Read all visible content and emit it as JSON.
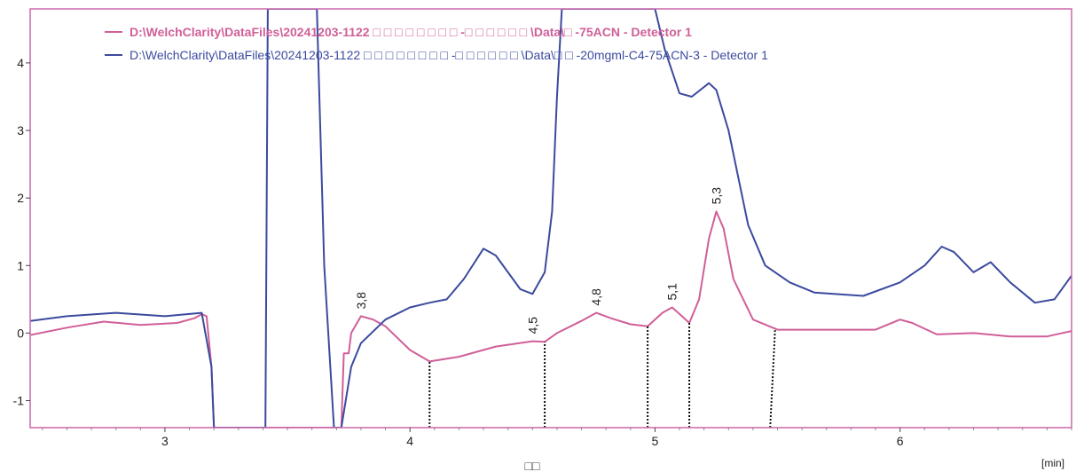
{
  "chart_data": {
    "type": "line",
    "xlim": [
      2.45,
      6.7
    ],
    "ylim": [
      -1.4,
      4.8
    ],
    "x_ticks": [
      3,
      4,
      5,
      6
    ],
    "y_ticks": [
      -1,
      0,
      1,
      2,
      3,
      4
    ],
    "x_unit": "[min]",
    "xlabel": "□□",
    "legend_position": "top-left",
    "frame_color": "#cc66aa",
    "series": [
      {
        "name": "D:\\WelchClarity\\DataFiles\\20241203-1122 □ □ □ □ □ □ □ □ -□ □ □ □ □ □ \\Data\\□ -75ACN - Detector 1",
        "color": "#d05f98",
        "points": [
          [
            2.45,
            -0.03
          ],
          [
            2.6,
            0.08
          ],
          [
            2.75,
            0.17
          ],
          [
            2.9,
            0.12
          ],
          [
            3.05,
            0.15
          ],
          [
            3.12,
            0.22
          ],
          [
            3.15,
            0.28
          ],
          [
            3.17,
            0.25
          ],
          [
            3.19,
            -0.5
          ],
          [
            3.2,
            -1.4
          ],
          [
            3.72,
            -1.4
          ],
          [
            3.73,
            -0.3
          ],
          [
            3.75,
            -0.3
          ],
          [
            3.76,
            0.0
          ],
          [
            3.8,
            0.25
          ],
          [
            3.85,
            0.2
          ],
          [
            3.9,
            0.1
          ],
          [
            4.0,
            -0.25
          ],
          [
            4.08,
            -0.42
          ],
          [
            4.2,
            -0.35
          ],
          [
            4.35,
            -0.2
          ],
          [
            4.5,
            -0.12
          ],
          [
            4.55,
            -0.13
          ],
          [
            4.6,
            0.0
          ],
          [
            4.7,
            0.18
          ],
          [
            4.76,
            0.3
          ],
          [
            4.82,
            0.22
          ],
          [
            4.9,
            0.13
          ],
          [
            4.97,
            0.1
          ],
          [
            5.03,
            0.3
          ],
          [
            5.07,
            0.38
          ],
          [
            5.11,
            0.25
          ],
          [
            5.14,
            0.15
          ],
          [
            5.18,
            0.5
          ],
          [
            5.22,
            1.4
          ],
          [
            5.25,
            1.8
          ],
          [
            5.28,
            1.55
          ],
          [
            5.32,
            0.8
          ],
          [
            5.4,
            0.2
          ],
          [
            5.5,
            0.05
          ],
          [
            5.7,
            0.05
          ],
          [
            5.9,
            0.05
          ],
          [
            6.0,
            0.2
          ],
          [
            6.05,
            0.15
          ],
          [
            6.15,
            -0.02
          ],
          [
            6.3,
            0.0
          ],
          [
            6.45,
            -0.05
          ],
          [
            6.6,
            -0.05
          ],
          [
            6.7,
            0.03
          ]
        ]
      },
      {
        "name": "D:\\WelchClarity\\DataFiles\\20241203-1122 □ □ □ □ □ □ □ □ -□ □ □ □ □ □ \\Data\\□ □ -20mgml-C4-75ACN-3 - Detector 1",
        "color": "#3b4a9e",
        "points": [
          [
            2.45,
            0.18
          ],
          [
            2.6,
            0.25
          ],
          [
            2.8,
            0.3
          ],
          [
            3.0,
            0.25
          ],
          [
            3.15,
            0.3
          ],
          [
            3.19,
            -0.5
          ],
          [
            3.2,
            -1.4
          ],
          [
            3.41,
            -1.4
          ],
          [
            3.42,
            4.8
          ],
          [
            3.62,
            4.8
          ],
          [
            3.65,
            1.0
          ],
          [
            3.69,
            -1.4
          ],
          [
            3.72,
            -1.4
          ],
          [
            3.76,
            -0.5
          ],
          [
            3.8,
            -0.15
          ],
          [
            3.9,
            0.2
          ],
          [
            4.0,
            0.38
          ],
          [
            4.08,
            0.45
          ],
          [
            4.15,
            0.5
          ],
          [
            4.22,
            0.8
          ],
          [
            4.3,
            1.25
          ],
          [
            4.35,
            1.15
          ],
          [
            4.45,
            0.65
          ],
          [
            4.5,
            0.58
          ],
          [
            4.55,
            0.9
          ],
          [
            4.58,
            1.8
          ],
          [
            4.6,
            3.5
          ],
          [
            4.62,
            4.8
          ],
          [
            5.0,
            4.8
          ],
          [
            5.04,
            4.2
          ],
          [
            5.1,
            3.55
          ],
          [
            5.15,
            3.5
          ],
          [
            5.22,
            3.7
          ],
          [
            5.25,
            3.6
          ],
          [
            5.3,
            3.0
          ],
          [
            5.38,
            1.6
          ],
          [
            5.45,
            1.0
          ],
          [
            5.55,
            0.75
          ],
          [
            5.65,
            0.6
          ],
          [
            5.85,
            0.55
          ],
          [
            6.0,
            0.75
          ],
          [
            6.1,
            1.0
          ],
          [
            6.17,
            1.28
          ],
          [
            6.22,
            1.2
          ],
          [
            6.3,
            0.9
          ],
          [
            6.37,
            1.05
          ],
          [
            6.45,
            0.75
          ],
          [
            6.55,
            0.45
          ],
          [
            6.63,
            0.5
          ],
          [
            6.7,
            0.85
          ]
        ]
      }
    ],
    "peak_labels": [
      {
        "x": 3.8,
        "y": 0.25,
        "text": "3,8"
      },
      {
        "x": 4.5,
        "y": -0.12,
        "text": "4,5"
      },
      {
        "x": 4.76,
        "y": 0.3,
        "text": "4,8"
      },
      {
        "x": 5.07,
        "y": 0.38,
        "text": "5,1"
      },
      {
        "x": 5.25,
        "y": 1.8,
        "text": "5,3"
      }
    ],
    "baseline_markers": [
      {
        "x": 4.08,
        "y_top": -0.42
      },
      {
        "x": 4.55,
        "y_top": -0.13
      },
      {
        "x": 4.97,
        "y_top": 0.1
      },
      {
        "x": 5.14,
        "y_top": 0.15
      },
      {
        "x": 5.47,
        "x_top": 5.49,
        "y_top": 0.05
      }
    ]
  }
}
